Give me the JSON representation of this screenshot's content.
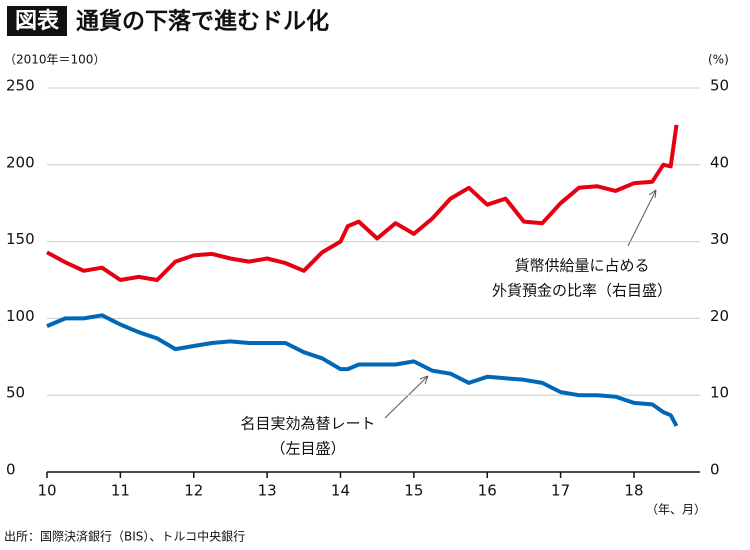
{
  "chart_data": {
    "type": "line",
    "title_tag": "図表",
    "title": "通貨の下落で進むドル化",
    "ylabel": "（2010年＝100）",
    "y2label": "(%)",
    "xlabel": "（年、月）",
    "source": "出所：国際決済銀行（BIS）、トルコ中央銀行",
    "x": [
      10,
      10.25,
      10.5,
      10.75,
      11,
      11.25,
      11.5,
      11.75,
      12,
      12.25,
      12.5,
      12.75,
      13,
      13.25,
      13.5,
      13.75,
      14,
      14.1,
      14.25,
      14.5,
      14.75,
      15,
      15.25,
      15.5,
      15.75,
      16,
      16.25,
      16.5,
      16.75,
      17,
      17.25,
      17.5,
      17.75,
      18,
      18.25,
      18.4,
      18.5,
      18.58
    ],
    "xlim": [
      10,
      18.9
    ],
    "xticks": [
      10,
      11,
      12,
      13,
      14,
      15,
      16,
      17,
      18
    ],
    "ylim": [
      0,
      250
    ],
    "yticks": [
      0,
      50,
      100,
      150,
      200,
      250
    ],
    "y2lim": [
      0,
      50
    ],
    "y2ticks": [
      0,
      10,
      20,
      30,
      40,
      50
    ],
    "grid": true,
    "series": [
      {
        "name": "貨幣供給量に占める外貨預金の比率（右目盛）",
        "color": "#e60012",
        "axis": "y2",
        "values": [
          28.6,
          27.3,
          26.2,
          26.6,
          25.0,
          25.4,
          25.0,
          27.4,
          28.2,
          28.4,
          27.8,
          27.4,
          27.8,
          27.2,
          26.2,
          28.6,
          30.0,
          32.0,
          32.6,
          30.4,
          32.4,
          31.0,
          33.0,
          35.6,
          37.0,
          34.8,
          35.6,
          32.6,
          32.4,
          35.0,
          37.0,
          37.2,
          36.6,
          37.6,
          37.8,
          40.0,
          39.8,
          45.2
        ]
      },
      {
        "name": "名目実効為替レート（左目盛）",
        "color": "#0068b7",
        "values": [
          95,
          100,
          100,
          102,
          96,
          91,
          87,
          80,
          82,
          84,
          85,
          84,
          84,
          84,
          78,
          74,
          67,
          67,
          70,
          70,
          70,
          72,
          66,
          64,
          58,
          62,
          61,
          60,
          58,
          52,
          50,
          50,
          49,
          45,
          44,
          39,
          37,
          30
        ]
      }
    ],
    "annotations": [
      {
        "lines": [
          "貨幣供給量に占める",
          "外貨預金の比率（右目盛）"
        ]
      },
      {
        "lines": [
          "名目実効為替レート",
          "（左目盛）"
        ]
      }
    ]
  }
}
